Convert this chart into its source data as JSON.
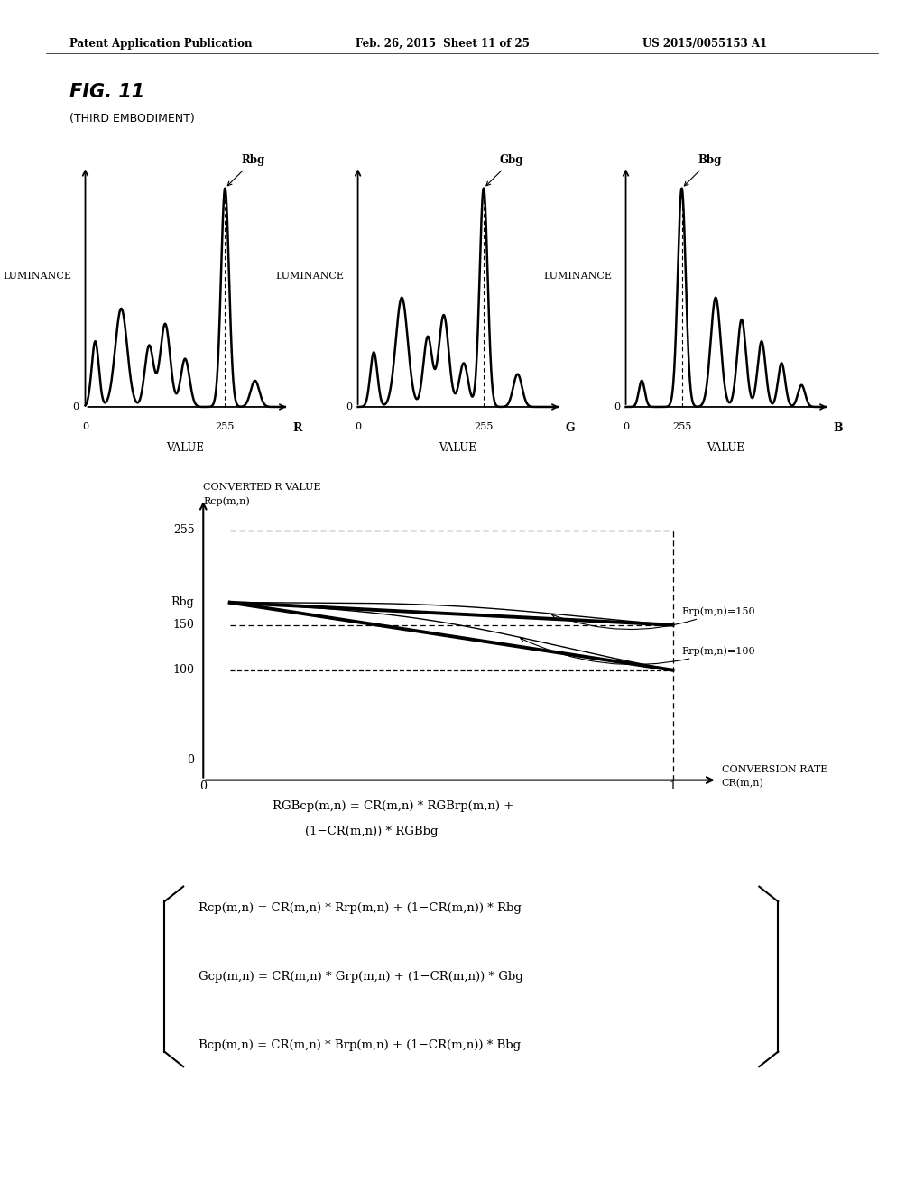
{
  "header_left": "Patent Application Publication",
  "header_mid": "Feb. 26, 2015  Sheet 11 of 25",
  "header_right": "US 2015/0055153 A1",
  "fig_title": "FIG. 11",
  "fig_subtitle": "(THIRD EMBODIMENT)",
  "bg_color": "#ffffff",
  "text_color": "#000000",
  "hist_labels": [
    "R",
    "G",
    "B"
  ],
  "hist_xlabel": "VALUE",
  "hist_ylabel": "LUMINANCE",
  "hist_peaks": [
    "Rbg",
    "Gbg",
    "Bbg"
  ],
  "bottom_ylabel1": "CONVERTED R VALUE",
  "bottom_ylabel2": "Rcp(m,n)",
  "bottom_xlabel1": "CONVERSION RATE",
  "bottom_xlabel2": "CR(m,n)",
  "rbg_label": "Rbg",
  "rbg_val": 175,
  "line_labels": [
    "Rrp(m,n)=150",
    "Rrp(m,n)=100"
  ],
  "formula1": "RGBcp(m,n) = CR(m,n) * RGBrp(m,n) +",
  "formula2": "(1−CR(m,n)) * RGBbg",
  "eq_r": "Rcp(m,n) = CR(m,n) * Rrp(m,n) + (1−CR(m,n)) * Rbg",
  "eq_g": "Gcp(m,n) = CR(m,n) * Grp(m,n) + (1−CR(m,n)) * Gbg",
  "eq_b": "Bcp(m,n) = CR(m,n) * Brp(m,n) + (1−CR(m,n)) * Bbg"
}
